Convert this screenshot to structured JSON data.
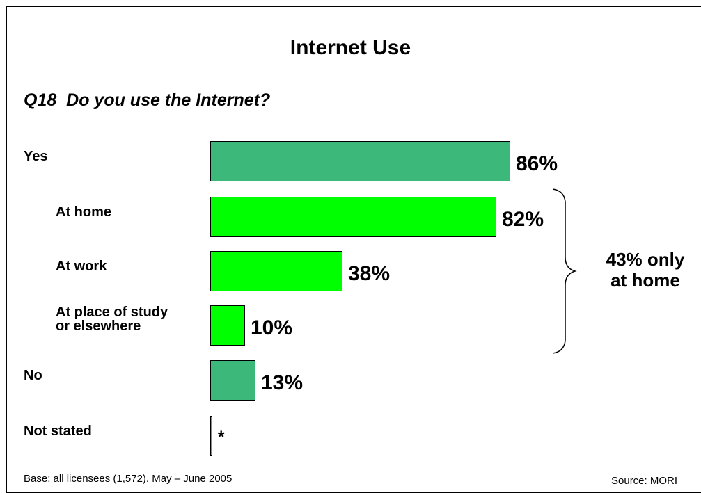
{
  "chart_data": {
    "type": "bar",
    "orientation": "horizontal",
    "title": "Internet Use",
    "subtitle": "Q18  Do you use the Internet?",
    "categories": [
      "Yes",
      "At home",
      "At work",
      "At place of study\nor elsewhere",
      "No",
      "Not stated"
    ],
    "values": [
      86,
      82,
      38,
      10,
      13,
      0.3
    ],
    "value_labels": [
      "86%",
      "82%",
      "38%",
      "10%",
      "13%",
      "*"
    ],
    "levels": [
      0,
      1,
      1,
      1,
      0,
      0
    ],
    "colors": [
      "#3cb87b",
      "#00ff00",
      "#00ff00",
      "#00ff00",
      "#3cb87b",
      "#3cb87b"
    ],
    "xlim": [
      0,
      100
    ],
    "grid": false,
    "annotation": {
      "text_line1": "43% only",
      "text_line2": "at home",
      "spans": [
        "At home",
        "At work",
        "At place of study\nor elsewhere"
      ]
    }
  },
  "footer": {
    "base": "Base: all licensees (1,572).  May – June 2005",
    "source": "Source: MORI"
  }
}
